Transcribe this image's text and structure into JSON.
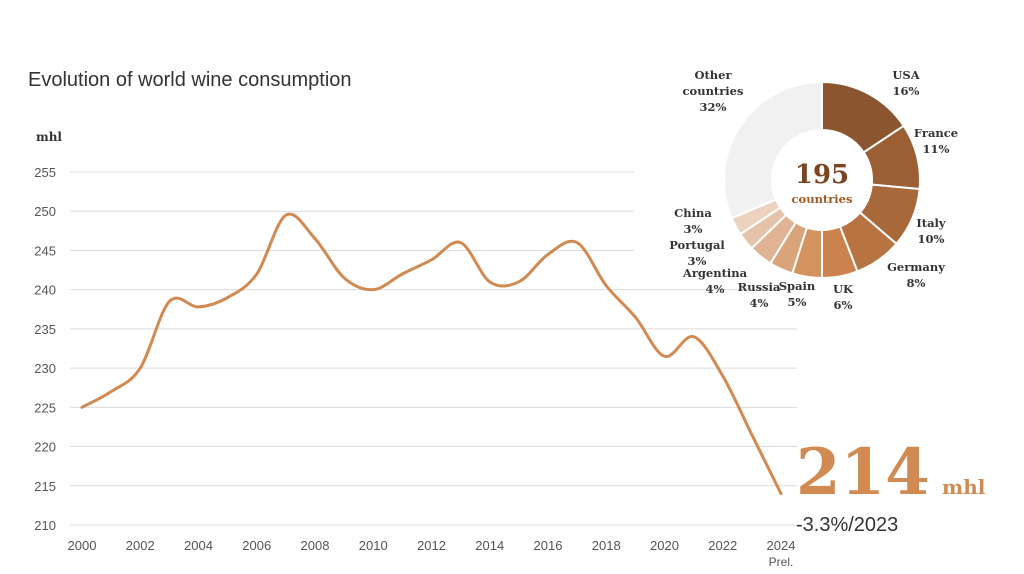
{
  "chart_data": [
    {
      "type": "line",
      "title": "Evolution of world wine consumption",
      "ylabel": "mhl",
      "ylim": [
        210,
        255
      ],
      "yticks": [
        210,
        215,
        220,
        225,
        230,
        235,
        240,
        245,
        250,
        255
      ],
      "xlim": [
        2000,
        2024
      ],
      "xticks": [
        2000,
        2002,
        2004,
        2006,
        2008,
        2010,
        2012,
        2014,
        2016,
        2018,
        2020,
        2022,
        2024
      ],
      "x_note": "Prel.",
      "grid": true,
      "series": [
        {
          "color": "#d08a52",
          "x": [
            2000,
            2001,
            2002,
            2003,
            2004,
            2005,
            2006,
            2007,
            2008,
            2009,
            2010,
            2011,
            2012,
            2013,
            2014,
            2015,
            2016,
            2017,
            2018,
            2019,
            2020,
            2021,
            2022,
            2023,
            2024
          ],
          "values": [
            225,
            227,
            230,
            238.5,
            237.8,
            239,
            242,
            249.5,
            246.5,
            241.5,
            240,
            242,
            243.8,
            246,
            241,
            241,
            244.5,
            246,
            240.5,
            236.5,
            231.5,
            234,
            229,
            221.5,
            214
          ]
        }
      ],
      "highlight": {
        "value": "214",
        "unit": "mhl",
        "change": "-3.3%/2023"
      }
    },
    {
      "type": "pie",
      "center_value": "195",
      "center_label": "countries",
      "slices": [
        {
          "label": "USA",
          "pct": "16%",
          "value": 16,
          "color": "#8b5530"
        },
        {
          "label": "France",
          "pct": "11%",
          "value": 11,
          "color": "#9b5f33"
        },
        {
          "label": "Italy",
          "pct": "10%",
          "value": 10,
          "color": "#a8693a"
        },
        {
          "label": "Germany",
          "pct": "8%",
          "value": 8,
          "color": "#b87342"
        },
        {
          "label": "UK",
          "pct": "6%",
          "value": 6,
          "color": "#cc824d"
        },
        {
          "label": "Spain",
          "pct": "5%",
          "value": 5,
          "color": "#d2935f"
        },
        {
          "label": "Russia",
          "pct": "4%",
          "value": 4,
          "color": "#d9a47a"
        },
        {
          "label": "Argentina",
          "pct": "4%",
          "value": 4,
          "color": "#dfb393"
        },
        {
          "label": "Portugal",
          "pct": "3%",
          "value": 3,
          "color": "#e6c2a8"
        },
        {
          "label": "China",
          "pct": "3%",
          "value": 3,
          "color": "#ecd2bf"
        },
        {
          "label": "Other countries",
          "pct": "32%",
          "value": 32,
          "color": "#f1f1f1"
        }
      ]
    }
  ]
}
